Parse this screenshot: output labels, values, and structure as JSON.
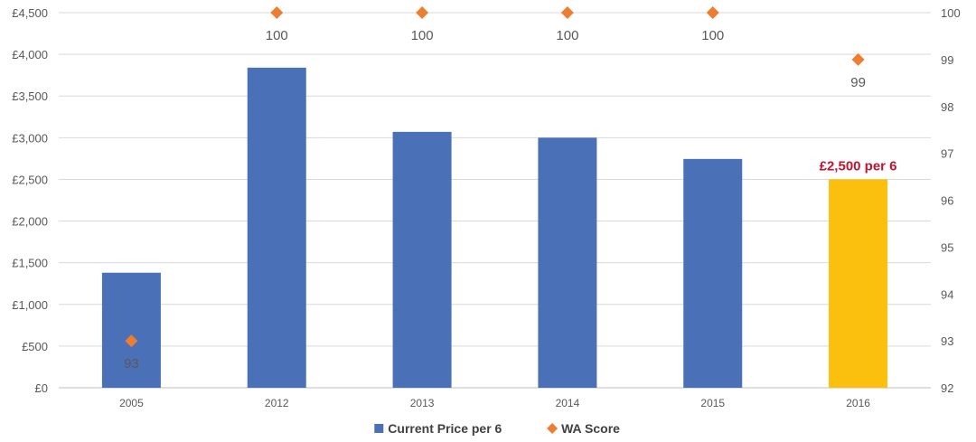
{
  "chart_data": {
    "type": "bar",
    "categories": [
      "2005",
      "2012",
      "2013",
      "2014",
      "2015",
      "2016"
    ],
    "series": [
      {
        "name": "Current Price per 6",
        "kind": "bar",
        "axis": "left",
        "values": [
          1380,
          3840,
          3070,
          3000,
          2745,
          2500
        ],
        "colors": [
          "#4a70b7",
          "#4a70b7",
          "#4a70b7",
          "#4a70b7",
          "#4a70b7",
          "#fbbf0e"
        ]
      },
      {
        "name": "WA Score",
        "kind": "marker",
        "marker": "diamond",
        "axis": "right",
        "color": "#ed7d31",
        "values": [
          93,
          100,
          100,
          100,
          100,
          99
        ],
        "labels": [
          "93",
          "100",
          "100",
          "100",
          "100",
          "99"
        ]
      }
    ],
    "bar_annotation": {
      "category": "2016",
      "text": "£2,500  per 6",
      "color": "#c0142f"
    },
    "ylim": [
      0,
      4500
    ],
    "y_ticks": [
      "£0",
      "£500",
      "£1,000",
      "£1,500",
      "£2,000",
      "£2,500",
      "£3,000",
      "£3,500",
      "£4,000",
      "£4,500"
    ],
    "y2lim": [
      92,
      100
    ],
    "y2_ticks": [
      "92",
      "93",
      "94",
      "95",
      "96",
      "97",
      "98",
      "99",
      "100"
    ],
    "grid": true,
    "legend": "bottom",
    "xlabel": "",
    "ylabel": ""
  }
}
